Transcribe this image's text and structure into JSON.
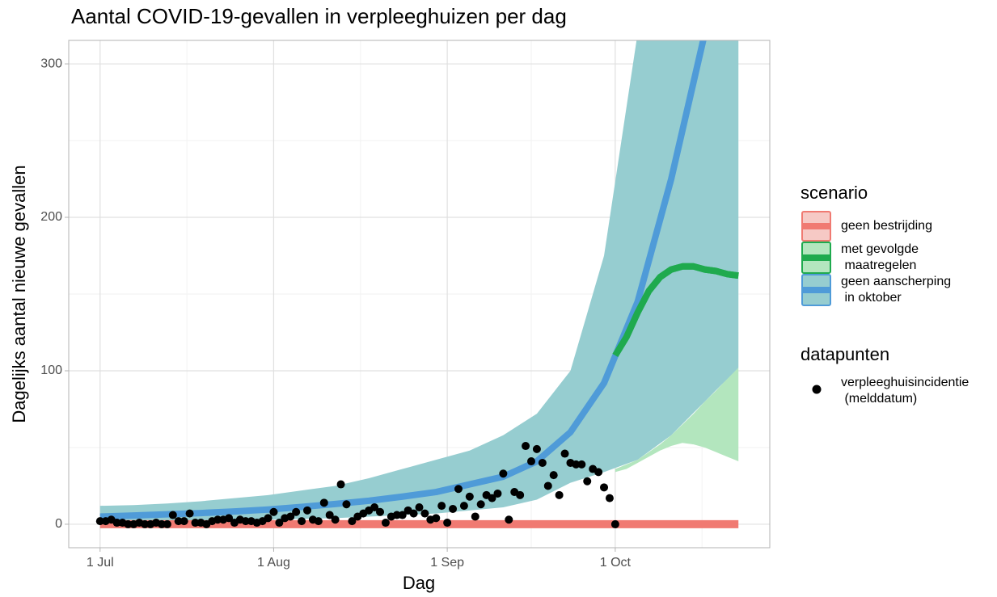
{
  "chart_data": {
    "type": "line",
    "title": "Aantal COVID-19-gevallen in verpleeghuizen per dag",
    "x_label": "Dag",
    "y_label": "Dagelijks aantal nieuwe gevallen",
    "xlim": [
      -5.6,
      119.6
    ],
    "ylim": [
      -15.3,
      315.3
    ],
    "xticks": [
      {
        "value": 0,
        "label": "1 Jul"
      },
      {
        "value": 31,
        "label": "1 Aug"
      },
      {
        "value": 62,
        "label": "1 Sep"
      },
      {
        "value": 92,
        "label": "1 Oct"
      }
    ],
    "xminor": [
      15.5,
      46.5,
      77,
      107.5
    ],
    "yticks": [
      0,
      100,
      200,
      300
    ],
    "yminor": [
      50,
      150,
      250
    ],
    "grid": true,
    "legend_title": "scenario",
    "series": [
      {
        "name": [
          "geen bestrijding"
        ],
        "color": "#f07a72",
        "band_color": "#f6c9c5",
        "x": [
          0,
          114
        ],
        "values": [
          0,
          0
        ]
      },
      {
        "name": [
          "met gevolgde",
          " maatregelen"
        ],
        "color": "#1faa4e",
        "band_color": "#b3e6be",
        "x": [
          92,
          94,
          96,
          98,
          100,
          102,
          104,
          106,
          108,
          110,
          112,
          114
        ],
        "values": [
          110,
          122,
          138,
          152,
          161,
          166,
          168,
          168,
          166,
          165,
          163,
          162
        ],
        "band_lower": [
          34,
          36,
          40,
          44,
          48,
          51,
          53,
          52,
          50,
          47,
          44,
          41
        ],
        "band_upper": [
          36,
          39,
          42,
          47,
          52,
          58,
          65,
          72,
          80,
          87,
          95,
          102
        ]
      },
      {
        "name": [
          "geen aanscherping",
          " in oktober"
        ],
        "color": "#4f9bd8",
        "band_color": "#96cdd0",
        "x": [
          0,
          6,
          12,
          18,
          24,
          30,
          36,
          42,
          48,
          54,
          60,
          66,
          72,
          78,
          84,
          90,
          96,
          102,
          108,
          114
        ],
        "values": [
          5,
          5.7,
          6.5,
          7.3,
          8.3,
          9.6,
          11.3,
          13.2,
          15.3,
          18,
          21,
          26,
          31,
          41,
          60,
          92,
          145,
          225,
          320,
          420
        ],
        "band_lower": [
          1,
          1,
          1.5,
          2,
          2.5,
          3,
          3.5,
          4,
          5,
          6,
          7,
          9,
          11,
          16,
          27,
          34,
          42,
          58,
          80,
          102
        ],
        "band_upper": [
          12,
          12.5,
          13.5,
          15,
          17,
          19,
          22,
          25,
          30,
          36,
          42,
          48,
          58,
          72,
          100,
          175,
          320,
          450,
          600,
          700
        ]
      }
    ],
    "points_title": "datapunten",
    "points": {
      "name": [
        "verpleeghuisincidentie",
        " (melddatum)"
      ],
      "color": "#000000",
      "x": [
        0,
        1,
        2,
        3,
        4,
        5,
        6,
        7,
        8,
        9,
        10,
        11,
        12,
        13,
        14,
        15,
        16,
        17,
        18,
        19,
        20,
        21,
        22,
        23,
        24,
        25,
        26,
        27,
        28,
        29,
        30,
        31,
        32,
        33,
        34,
        35,
        36,
        37,
        38,
        39,
        40,
        41,
        42,
        43,
        44,
        45,
        46,
        47,
        48,
        49,
        50,
        51,
        52,
        53,
        54,
        55,
        56,
        57,
        58,
        59,
        60,
        61,
        62,
        63,
        64,
        65,
        66,
        67,
        68,
        69,
        70,
        71,
        72,
        73,
        74,
        75,
        76,
        77,
        78,
        79,
        80,
        81,
        82,
        83,
        84,
        85,
        86,
        87,
        88,
        89,
        90,
        91,
        92
      ],
      "values": [
        2,
        2,
        3,
        1,
        1,
        0,
        0,
        1,
        0,
        0,
        1,
        0,
        0,
        6,
        2,
        2,
        7,
        1,
        1,
        0,
        2,
        3,
        3,
        4,
        1,
        3,
        2,
        2,
        1,
        2,
        4,
        8,
        1,
        4,
        5,
        8,
        2,
        9,
        3,
        2,
        14,
        6,
        3,
        26,
        13,
        2,
        5,
        7,
        9,
        11,
        8,
        1,
        5,
        6,
        6,
        9,
        7,
        11,
        7,
        3,
        4,
        12,
        1,
        10,
        23,
        12,
        18,
        5,
        13,
        19,
        17,
        20,
        33,
        3,
        21,
        19,
        51,
        41,
        49,
        40,
        25,
        32,
        19,
        46,
        40,
        39,
        39,
        28,
        36,
        34,
        24,
        17,
        0
      ]
    }
  }
}
